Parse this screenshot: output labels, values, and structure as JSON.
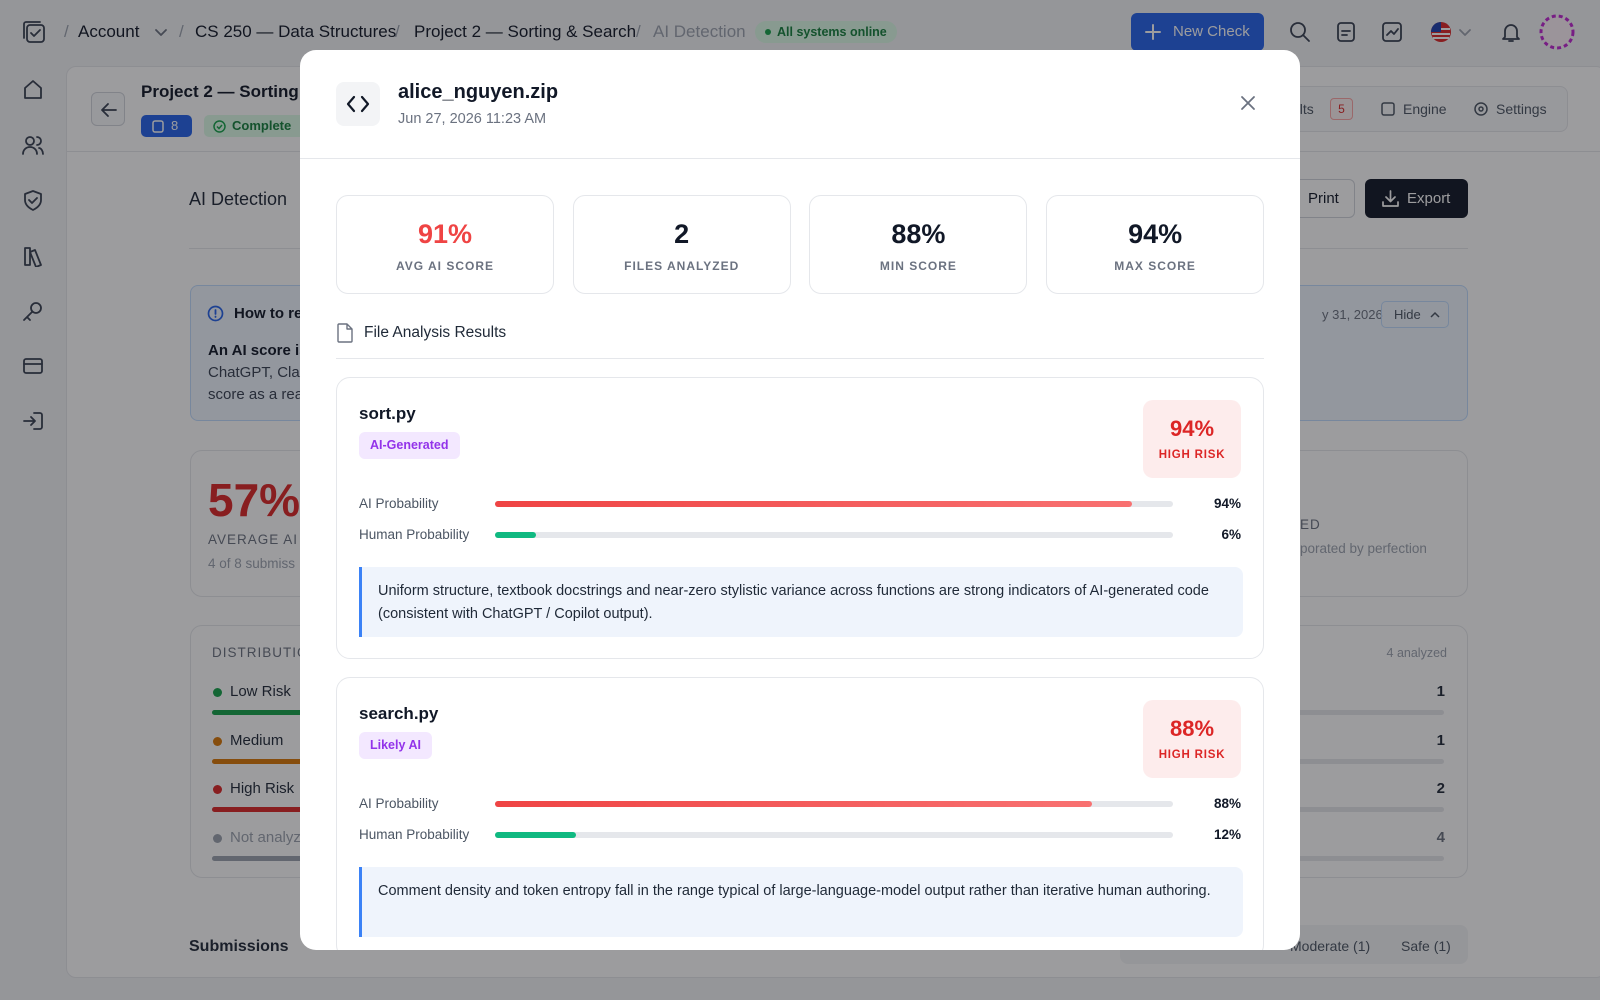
{
  "nav": {
    "breadcrumbs": [
      "Account",
      "CS 250 — Data Structures",
      "Project 2 — Sorting & Search",
      "AI Detection"
    ],
    "status": "All systems online",
    "new_check": "New Check"
  },
  "background": {
    "project_title": "Project 2 — Sorting",
    "submission_count": 8,
    "status": "Complete",
    "tabs": [
      {
        "label": "ults",
        "badge": 5
      },
      {
        "label": "Engine"
      },
      {
        "label": "Settings"
      }
    ],
    "section_title": "AI Detection",
    "print": "Print",
    "export": "Export",
    "info": {
      "title": "How to re",
      "bold": "An AI score is",
      "lines": [
        "ChatGPT, Clau",
        "score as a rea"
      ],
      "date": "y 31, 2026",
      "hide": "Hide"
    },
    "summary": {
      "value": "57%",
      "label": "AVERAGE AI S",
      "note": "4 of 8 submiss",
      "right_label": "ED",
      "right_note": "porated by perfection"
    },
    "distribution": {
      "title": "DISTRIBUTIO",
      "analyzed": "4 analyzed",
      "rows": [
        {
          "label": "Low Risk",
          "count": 1
        },
        {
          "label": "Medium",
          "count": 1
        },
        {
          "label": "High Risk",
          "count": 2
        },
        {
          "label": "Not analyz",
          "count": 4
        }
      ]
    },
    "submissions": "Submissions",
    "filters": [
      "Moderate (1)",
      "Safe (1)"
    ]
  },
  "modal": {
    "title": "alice_nguyen.zip",
    "date": "Jun 27, 2026 11:23 AM",
    "stats": [
      {
        "value": "91%",
        "label": "AVG AI SCORE"
      },
      {
        "value": "2",
        "label": "FILES ANALYZED"
      },
      {
        "value": "88%",
        "label": "MIN SCORE"
      },
      {
        "value": "94%",
        "label": "MAX SCORE"
      }
    ],
    "section_title": "File Analysis Results",
    "files": [
      {
        "name": "sort.py",
        "tag": "AI-Generated",
        "score": "94%",
        "risk": "HIGH RISK",
        "rows": [
          {
            "label": "AI Probability",
            "value": 94,
            "value_label": "94%"
          },
          {
            "label": "Human Probability",
            "value": 6,
            "value_label": "6%"
          }
        ],
        "note": "Uniform structure, textbook docstrings and near-zero stylistic variance across functions are strong indicators of AI-generated code (consistent with ChatGPT / Copilot output)."
      },
      {
        "name": "search.py",
        "tag": "Likely AI",
        "score": "88%",
        "risk": "HIGH RISK",
        "rows": [
          {
            "label": "AI Probability",
            "value": 88,
            "value_label": "88%"
          },
          {
            "label": "Human Probability",
            "value": 12,
            "value_label": "12%"
          }
        ],
        "note": "Comment density and token entropy fall in the range typical of large-language-model output rather than iterative human authoring."
      }
    ]
  }
}
